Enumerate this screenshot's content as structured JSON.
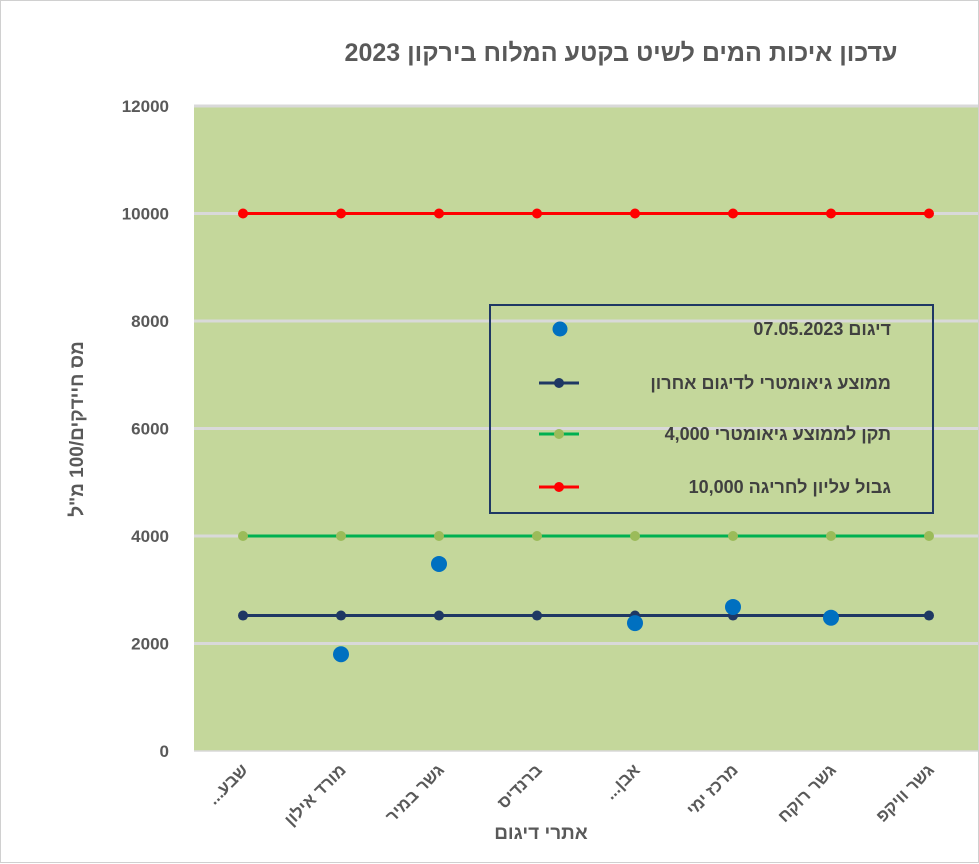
{
  "chart_data": {
    "type": "line",
    "title": "עדכון איכות המים לשיט בקטע המלוח בירקון 2023",
    "xlabel": "אתרי דיגום",
    "ylabel": "מס חיידקים/100 מ\"ל",
    "ylim": [
      0,
      12000
    ],
    "yticks": [
      0,
      2000,
      4000,
      6000,
      8000,
      10000,
      12000
    ],
    "grid": true,
    "legend_position": "right-center",
    "categories": [
      "שבע...",
      "מורד אילון",
      "גשר במיר",
      "ברנדיס",
      "אבן...",
      "מרכז ימי",
      "גשר רוקח",
      "גשר וויקפ"
    ],
    "plot_background": "#c4d79b",
    "series": [
      {
        "name": "דיגום  07.05.2023",
        "kind": "scatter",
        "color": "#0070c0",
        "values": [
          null,
          1800,
          3480,
          null,
          2380,
          2680,
          2480,
          null
        ]
      },
      {
        "name": "ממוצע  גיאומטרי לדיגום אחרון",
        "kind": "line",
        "color": "#1f3864",
        "values": [
          2520,
          2520,
          2520,
          2520,
          2520,
          2520,
          2520,
          2520
        ]
      },
      {
        "name": "תקן לממוצע גיאומטרי 4,000",
        "kind": "line",
        "color": "#00b050",
        "marker_color": "#9bbb59",
        "values": [
          4000,
          4000,
          4000,
          4000,
          4000,
          4000,
          4000,
          4000
        ]
      },
      {
        "name": "גבול עליון לחריגה 10,000",
        "kind": "line",
        "color": "#ff0000",
        "values": [
          10000,
          10000,
          10000,
          10000,
          10000,
          10000,
          10000,
          10000
        ]
      }
    ]
  }
}
